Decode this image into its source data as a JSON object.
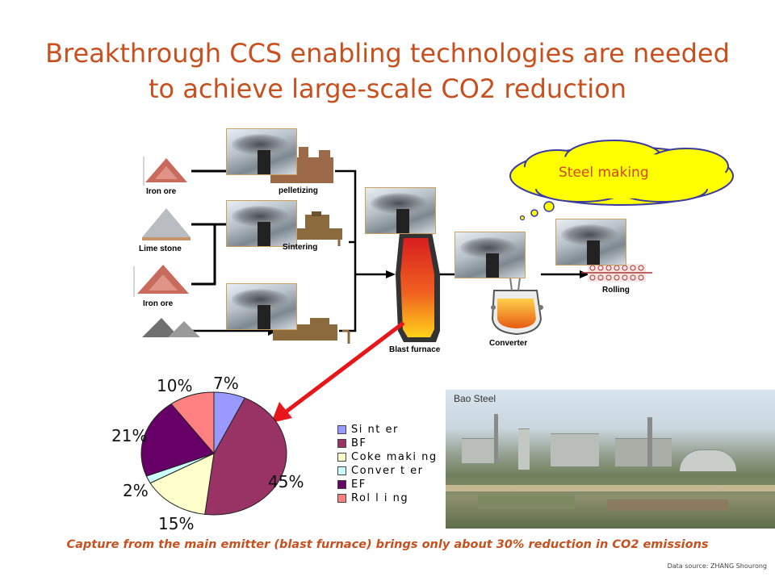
{
  "slide": {
    "title_line1": "Breakthrough CCS enabling technologies are needed",
    "title_line2": "to achieve large-scale CO2 reduction",
    "caption": "Capture from the main emitter (blast furnace) brings only about 30% reduction in CO2 emissions",
    "source": "Data source: ZHANG Shourong"
  },
  "process": {
    "iron_ore_1": "Iron ore",
    "lime_stone": "Lime stone",
    "iron_ore_2": "Iron ore",
    "pelletizing": "pelletizing",
    "sintering": "Sintering",
    "blast_furnace": "Blast furnace",
    "converter": "Converter",
    "rolling": "Rolling",
    "steel_making": "Steel making"
  },
  "photo": {
    "label": "Bao Steel"
  },
  "colors": {
    "title": "#c8501e",
    "arrow": "#e8151b",
    "cloud": "#ffff00"
  },
  "chart_data": {
    "type": "pie",
    "title": "",
    "slices": [
      {
        "label": "Sinter",
        "value": 7,
        "display": "7%",
        "color": "#9999ff"
      },
      {
        "label": "BF",
        "value": 45,
        "display": "45%",
        "color": "#993366"
      },
      {
        "label": "Coke making",
        "value": 15,
        "display": "15%",
        "color": "#ffffcc"
      },
      {
        "label": "Converter",
        "value": 2,
        "display": "2%",
        "color": "#ccffff"
      },
      {
        "label": "EF",
        "value": 21,
        "display": "21%",
        "color": "#660066"
      },
      {
        "label": "Rolling",
        "value": 10,
        "display": "10%",
        "color": "#ff8080"
      }
    ],
    "legend": {
      "position": "right",
      "items": [
        "Si nt er",
        "BF",
        "Coke maki ng",
        "Conver t er",
        "EF",
        "Rol l i ng"
      ]
    }
  }
}
